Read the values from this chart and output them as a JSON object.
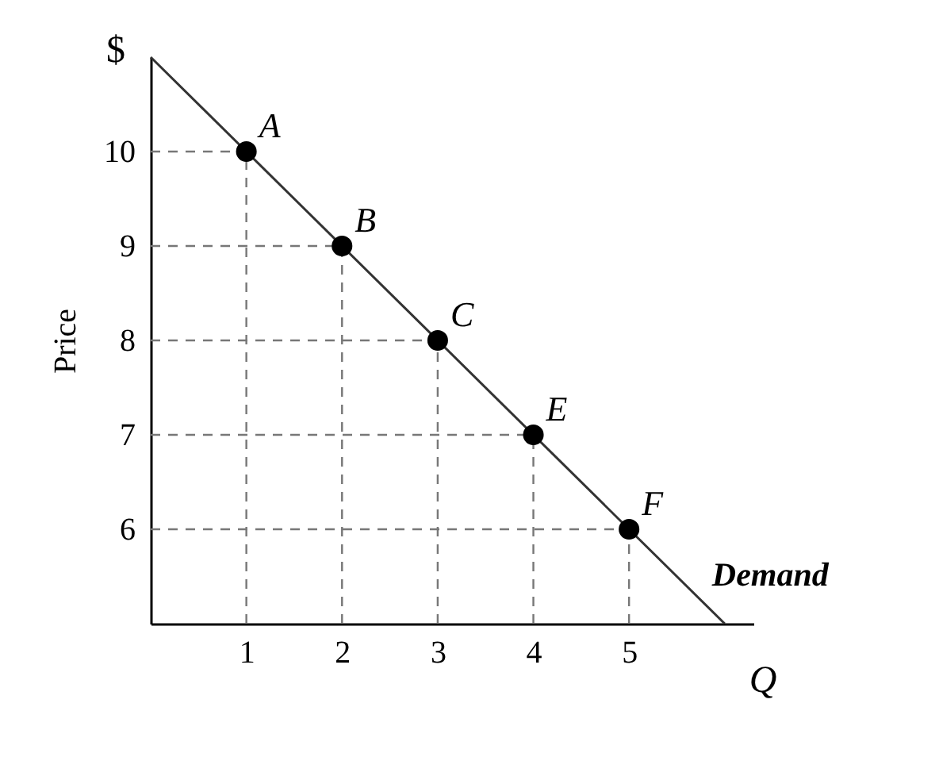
{
  "chart_data": {
    "type": "line",
    "ylabel": "Price",
    "annotations": [
      "$",
      "Q",
      {
        "text": "A",
        "x": 1,
        "y": 10
      },
      {
        "text": "B",
        "x": 2,
        "y": 9
      },
      {
        "text": "C",
        "x": 3,
        "y": 8
      },
      {
        "text": "E",
        "x": 4,
        "y": 7
      },
      {
        "text": "F",
        "x": 5,
        "y": 6
      }
    ],
    "series": [
      {
        "name": "Demand",
        "type": "line",
        "color": "#333333",
        "marker": "none",
        "x": [
          0,
          6
        ],
        "values": [
          11,
          5
        ]
      },
      {
        "type": "scatter",
        "color": "#000000",
        "marker": "circle",
        "x": [
          1,
          2,
          3,
          4,
          5
        ],
        "values": [
          10,
          9,
          8,
          7,
          6
        ]
      }
    ],
    "xlim": [
      0,
      6.3
    ],
    "ylim": [
      5,
      11
    ],
    "xticks": [
      1,
      2,
      3,
      4,
      5
    ],
    "yticks": [
      6,
      7,
      8,
      9,
      10
    ]
  }
}
